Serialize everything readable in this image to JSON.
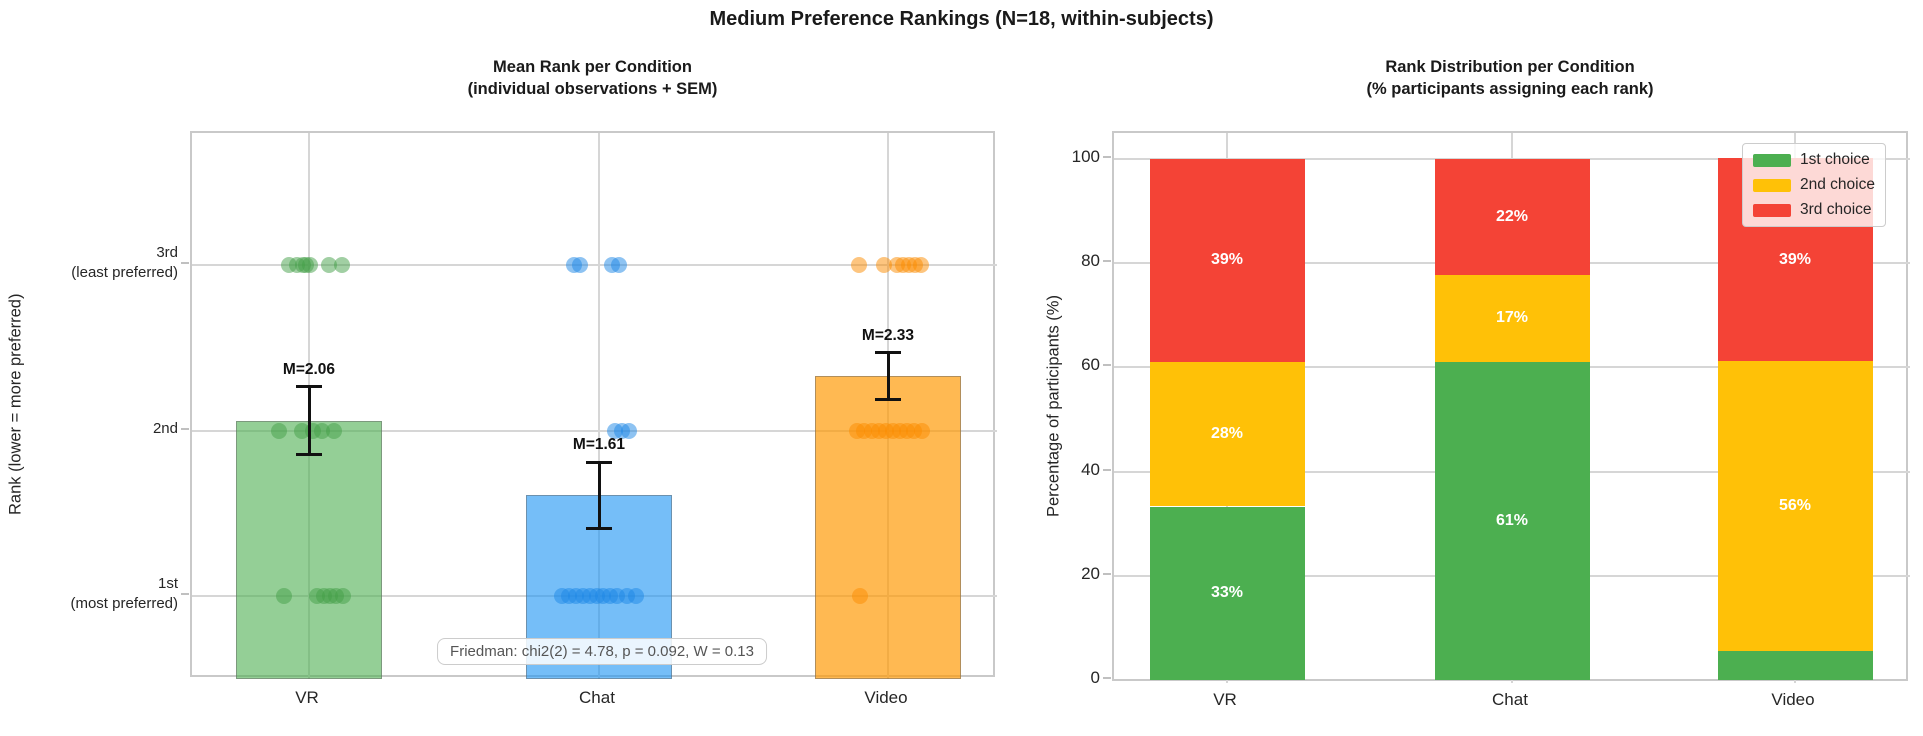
{
  "figure_title": "Medium Preference Rankings (N=18, within-subjects)",
  "colors": {
    "first_choice_green": "#4caf50",
    "second_choice_amber": "#ffc107",
    "third_choice_red": "#f44336",
    "vr_bar": "rgba(76,175,80,0.60)",
    "chat_bar": "rgba(33,150,243,0.62)",
    "video_bar": "rgba(255,152,0,0.68)",
    "vr_dot": "rgba(67,160,71,0.50)",
    "chat_dot": "rgba(30,136,229,0.50)",
    "video_dot": "rgba(251,140,0,0.50)",
    "annotation_text": "#555555"
  },
  "chart_data": [
    {
      "type": "bar",
      "title_line1": "Mean Rank per Condition",
      "title_line2": "(individual observations + SEM)",
      "ylabel": "Rank (lower = more preferred)",
      "categories": [
        "VR",
        "Chat",
        "Video"
      ],
      "means": [
        2.06,
        1.61,
        2.33
      ],
      "sem": [
        0.205,
        0.2,
        0.142
      ],
      "mean_labels": [
        "M=2.06",
        "M=1.61",
        "M=2.33"
      ],
      "bar_colors": [
        "rgba(76,175,80,0.60)",
        "rgba(33,150,243,0.62)",
        "rgba(255,152,0,0.68)"
      ],
      "dot_colors": [
        "rgba(67,160,71,0.50)",
        "rgba(30,136,229,0.50)",
        "rgba(251,140,0,0.50)"
      ],
      "ylim": [
        0.5,
        3.8
      ],
      "yticks": [
        {
          "rank": 1,
          "lines": [
            "1st",
            "(most preferred)"
          ]
        },
        {
          "rank": 2,
          "lines": [
            "2nd"
          ]
        },
        {
          "rank": 3,
          "lines": [
            "3rd",
            "(least preferred)"
          ]
        }
      ],
      "rank_counts": {
        "VR": {
          "rank1": 6,
          "rank2": 5,
          "rank3": 7
        },
        "Chat": {
          "rank1": 11,
          "rank2": 3,
          "rank3": 4
        },
        "Video": {
          "rank1": 1,
          "rank2": 10,
          "rank3": 7
        }
      },
      "points": [
        {
          "cat_index": 0,
          "rank": 3,
          "offsets": [
            -20,
            -12,
            -6,
            -3,
            1,
            20,
            33
          ]
        },
        {
          "cat_index": 0,
          "rank": 2,
          "offsets": [
            -30,
            -7,
            4,
            13,
            25
          ]
        },
        {
          "cat_index": 0,
          "rank": 1,
          "offsets": [
            -25,
            8,
            15,
            21,
            27,
            34
          ]
        },
        {
          "cat_index": 1,
          "rank": 3,
          "offsets": [
            -25,
            -19,
            13,
            20
          ]
        },
        {
          "cat_index": 1,
          "rank": 2,
          "offsets": [
            16,
            23,
            30
          ]
        },
        {
          "cat_index": 1,
          "rank": 1,
          "offsets": [
            -37,
            -30,
            -23,
            -16,
            -9,
            -2,
            4,
            11,
            18,
            28,
            37
          ]
        },
        {
          "cat_index": 2,
          "rank": 3,
          "offsets": [
            -29,
            -4,
            9,
            15,
            21,
            27,
            33
          ]
        },
        {
          "cat_index": 2,
          "rank": 2,
          "offsets": [
            -31,
            -24,
            -16,
            -9,
            -2,
            5,
            12,
            19,
            26,
            34
          ]
        },
        {
          "cat_index": 2,
          "rank": 1,
          "offsets": [
            -28
          ]
        }
      ],
      "annotation": "Friedman: chi2(2) = 4.78, p = 0.092, W = 0.13"
    },
    {
      "type": "stacked_bar",
      "title_line1": "Rank Distribution per Condition",
      "title_line2": "(% participants assigning each rank)",
      "ylabel": "Percentage of participants (%)",
      "categories": [
        "VR",
        "Chat",
        "Video"
      ],
      "yticks": [
        0,
        20,
        40,
        60,
        80,
        100
      ],
      "ylim": [
        0,
        105
      ],
      "series": [
        {
          "name": "1st choice",
          "color": "#4caf50",
          "values": [
            33.3,
            61.1,
            5.6
          ],
          "labels": [
            "33%",
            "61%",
            null
          ]
        },
        {
          "name": "2nd choice",
          "color": "#ffc107",
          "values": [
            27.8,
            16.7,
            55.6
          ],
          "labels": [
            "28%",
            "17%",
            "56%"
          ]
        },
        {
          "name": "3rd choice",
          "color": "#f44336",
          "values": [
            38.9,
            22.2,
            38.9
          ],
          "labels": [
            "39%",
            "22%",
            "39%"
          ]
        }
      ],
      "legend": {
        "position": "upper right",
        "entries": [
          "1st choice",
          "2nd choice",
          "3rd choice"
        ]
      }
    }
  ]
}
